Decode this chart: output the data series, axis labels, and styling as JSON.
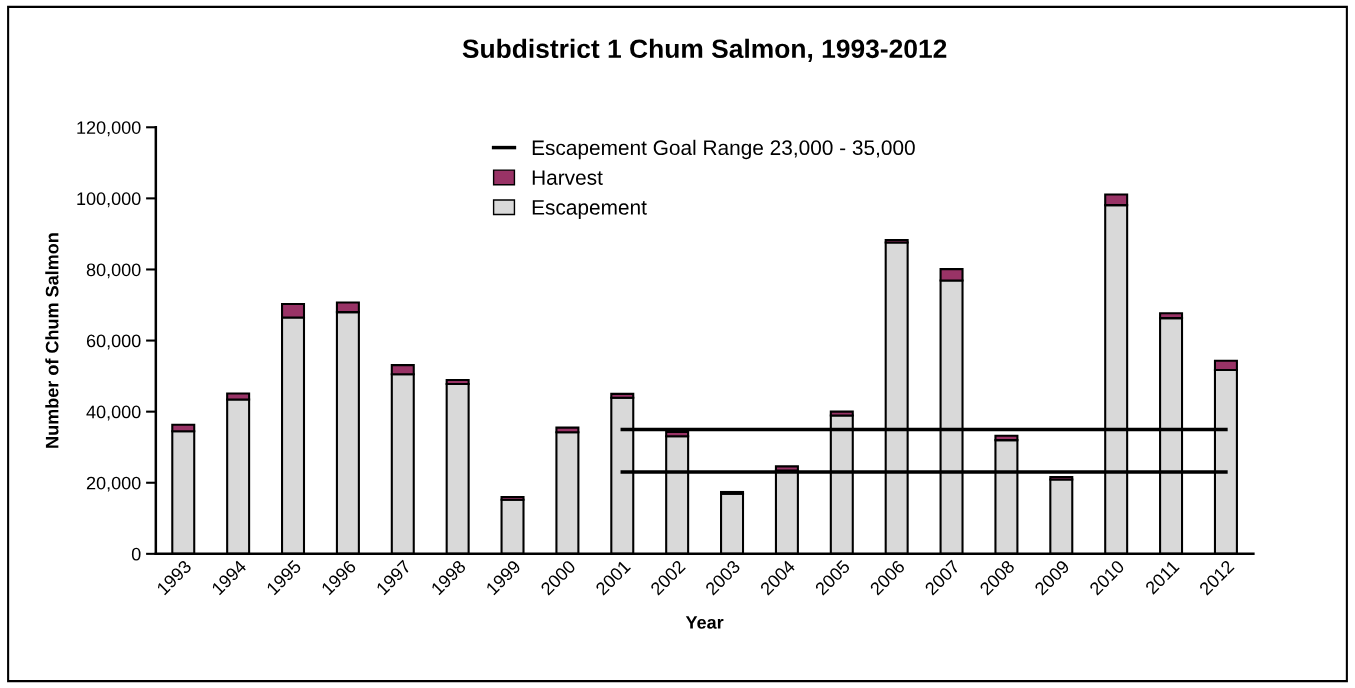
{
  "chart_data": {
    "type": "bar",
    "stacked": true,
    "title": "Subdistrict 1 Chum Salmon, 1993-2012",
    "xlabel": "Year",
    "ylabel": "Number of Chum Salmon",
    "categories": [
      "1993",
      "1994",
      "1995",
      "1996",
      "1997",
      "1998",
      "1999",
      "2000",
      "2001",
      "2002",
      "2003",
      "2004",
      "2005",
      "2006",
      "2007",
      "2008",
      "2009",
      "2010",
      "2011",
      "2012"
    ],
    "series": [
      {
        "name": "Escapement",
        "color": "#d9d9d9",
        "values": [
          34500,
          43400,
          66500,
          68000,
          50500,
          47800,
          15200,
          34200,
          43900,
          33100,
          16900,
          23400,
          38900,
          87600,
          76900,
          32000,
          20900,
          98100,
          66300,
          51700
        ]
      },
      {
        "name": "Harvest",
        "color": "#993366",
        "values": [
          1800,
          1700,
          3800,
          2700,
          2600,
          1100,
          800,
          1300,
          1100,
          1200,
          500,
          1200,
          1100,
          700,
          3200,
          1200,
          700,
          3000,
          1400,
          2600
        ]
      },
      {
        "name": "Escapement Goal Range 23,000 - 35,000",
        "type": "line",
        "color": "#000000",
        "values": [
          null,
          null,
          null,
          null,
          null,
          null,
          null,
          null,
          35000,
          35000,
          35000,
          35000,
          35000,
          35000,
          35000,
          35000,
          35000,
          35000,
          35000,
          35000
        ]
      },
      {
        "type": "line",
        "color": "#000000",
        "values": [
          null,
          null,
          null,
          null,
          null,
          null,
          null,
          null,
          23000,
          23000,
          23000,
          23000,
          23000,
          23000,
          23000,
          23000,
          23000,
          23000,
          23000,
          23000
        ]
      }
    ],
    "ylim": [
      0,
      120000
    ],
    "yticks": [
      0,
      {
        "value": 20000,
        "label": "20,000"
      },
      {
        "value": 40000,
        "label": "40,000"
      },
      {
        "value": 60000,
        "label": "60,000"
      },
      {
        "value": 80000,
        "label": "80,000"
      },
      {
        "value": 100000,
        "label": "100,000"
      },
      {
        "value": 120000,
        "label": "120,000"
      }
    ],
    "legend": "top",
    "grid": false,
    "marker": "none",
    "line_style": "solid"
  }
}
